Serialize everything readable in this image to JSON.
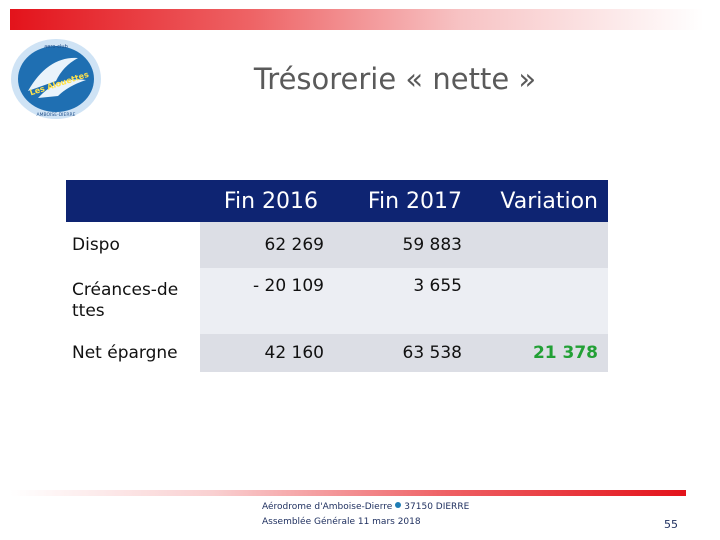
{
  "slide": {
    "title": "Trésorerie « nette »",
    "page_number": "55"
  },
  "logo": {
    "top_text": "aero-club",
    "main_text": "Les Alouettes",
    "bottom_text": "AMBOISE-DIERRE"
  },
  "table": {
    "headers": [
      "",
      "Fin 2016",
      "Fin 2017",
      "Variation"
    ],
    "rows": [
      {
        "label": "Dispo",
        "fin2016": "62 269",
        "fin2017": "59 883",
        "variation": ""
      },
      {
        "label": "Créances-dettes",
        "fin2016": "- 20 109",
        "fin2017": "3 655",
        "variation": ""
      },
      {
        "label": "Net épargne",
        "fin2016": "42 160",
        "fin2017": "63 538",
        "variation": "21 378"
      }
    ]
  },
  "footer": {
    "place": "Aérodrome d'Amboise-Dierre",
    "postal": "37150 DIERRE",
    "event": "Assemblée Générale 11 mars 2018"
  },
  "colors": {
    "header_bg": "#0e2472",
    "accent_red": "#e3131b",
    "variation_green": "#22a035"
  }
}
